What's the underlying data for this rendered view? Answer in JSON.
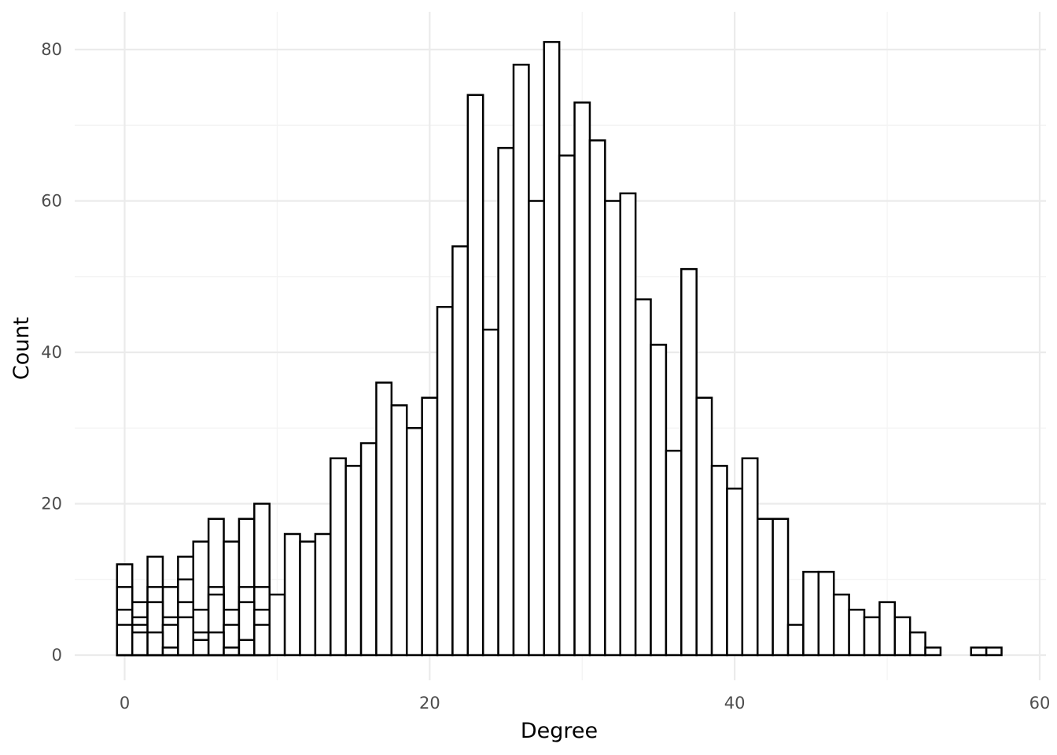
{
  "chart_data": {
    "type": "bar",
    "chart_subtype": "histogram (overlapping, unfilled bars)",
    "title": "",
    "xlabel": "Degree",
    "ylabel": "Count",
    "xlim": [
      -2,
      60
    ],
    "ylim": [
      -4,
      85
    ],
    "x_ticks": [
      0,
      20,
      40,
      60
    ],
    "y_ticks": [
      0,
      20,
      40,
      60,
      80
    ],
    "bin_width": 1,
    "grid": true,
    "legend": "none",
    "colors": {
      "bar_fill": "#ffffff",
      "bar_outline": "#000000",
      "grid": "#ebebeb",
      "tick_text": "#4d4d4d"
    },
    "series": [
      {
        "x": [
          0,
          1,
          2,
          3,
          4,
          5,
          6,
          7,
          8,
          9,
          10,
          11,
          12,
          13,
          14,
          15,
          16,
          17,
          18,
          19,
          20,
          21,
          22,
          23,
          24,
          25,
          26,
          27,
          28,
          29,
          30,
          31,
          32,
          33,
          34,
          35,
          36,
          37,
          38,
          39,
          40,
          41,
          42,
          43,
          44,
          45,
          46,
          47,
          48,
          49,
          50,
          51,
          52,
          53,
          56,
          57
        ],
        "values": [
          12,
          7,
          13,
          9,
          13,
          15,
          18,
          15,
          18,
          20,
          8,
          16,
          15,
          16,
          26,
          25,
          28,
          36,
          33,
          30,
          34,
          46,
          54,
          74,
          43,
          67,
          78,
          60,
          81,
          66,
          73,
          68,
          60,
          61,
          47,
          41,
          27,
          51,
          34,
          25,
          22,
          26,
          18,
          18,
          4,
          11,
          11,
          8,
          6,
          5,
          7,
          5,
          3,
          1,
          1,
          1
        ]
      },
      {
        "x": [
          0,
          1,
          2,
          3,
          4,
          5,
          6,
          7,
          8,
          9
        ],
        "values": [
          9,
          5,
          9,
          5,
          10,
          6,
          9,
          6,
          9,
          9
        ]
      },
      {
        "x": [
          0,
          1,
          2,
          3,
          4,
          5,
          6,
          7,
          8,
          9
        ],
        "values": [
          6,
          4,
          7,
          4,
          7,
          3,
          8,
          4,
          7,
          6
        ]
      },
      {
        "x": [
          0,
          1,
          2,
          3,
          4,
          5,
          6,
          7,
          8,
          9
        ],
        "values": [
          4,
          3,
          3,
          1,
          5,
          2,
          3,
          1,
          2,
          4
        ]
      }
    ]
  }
}
